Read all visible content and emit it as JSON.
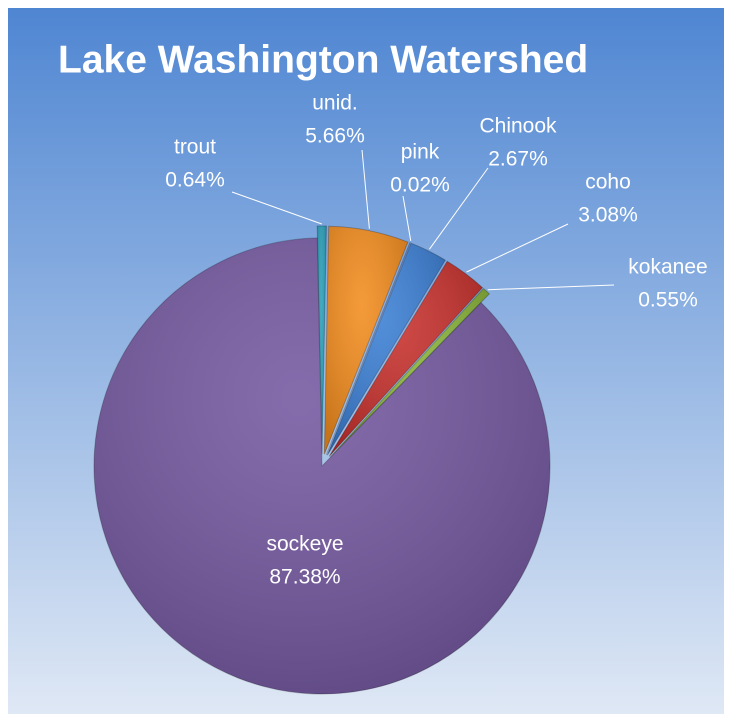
{
  "chart_data": {
    "type": "pie",
    "title": "Lake Washington Watershed",
    "categories": [
      "trout",
      "unid.",
      "pink",
      "Chinook",
      "coho",
      "kokanee",
      "sockeye"
    ],
    "values": [
      0.64,
      5.66,
      0.02,
      2.67,
      3.08,
      0.55,
      87.38
    ],
    "value_labels": [
      "0.64%",
      "5.66%",
      "0.02%",
      "2.67%",
      "3.08%",
      "0.55%",
      "87.38%"
    ],
    "colors": [
      "#2a9fb8",
      "#f28c1e",
      "#8a7bbf",
      "#3b7fd4",
      "#c6302c",
      "#8bb43a",
      "#7458a0"
    ]
  }
}
